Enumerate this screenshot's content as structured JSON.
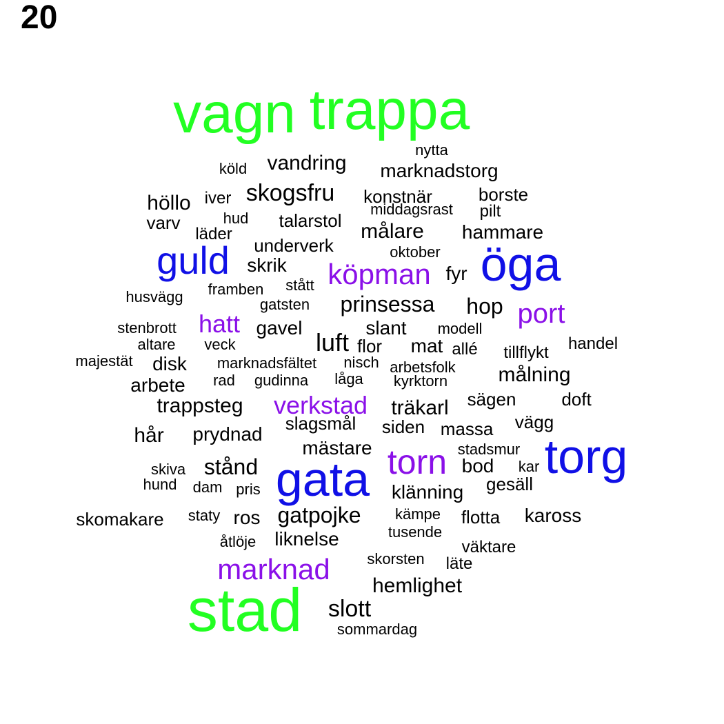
{
  "page_title": "20",
  "colors": {
    "green": "#22ff22",
    "blue": "#1010e6",
    "purple": "#8a10e8",
    "black": "#000000"
  },
  "words": [
    {
      "text": "vagn",
      "color": "green"
    },
    {
      "text": "trappa",
      "color": "green"
    },
    {
      "text": "stad",
      "color": "green"
    },
    {
      "text": "öga",
      "color": "blue"
    },
    {
      "text": "torg",
      "color": "blue"
    },
    {
      "text": "gata",
      "color": "blue"
    },
    {
      "text": "guld",
      "color": "blue"
    },
    {
      "text": "köpman",
      "color": "purple"
    },
    {
      "text": "port",
      "color": "purple"
    },
    {
      "text": "hatt",
      "color": "purple"
    },
    {
      "text": "verkstad",
      "color": "purple"
    },
    {
      "text": "torn",
      "color": "purple"
    },
    {
      "text": "marknad",
      "color": "purple"
    },
    {
      "text": "nytta",
      "color": "black"
    },
    {
      "text": "köld",
      "color": "black"
    },
    {
      "text": "vandring",
      "color": "black"
    },
    {
      "text": "marknadstorg",
      "color": "black"
    },
    {
      "text": "skogsfru",
      "color": "black"
    },
    {
      "text": "konstnär",
      "color": "black"
    },
    {
      "text": "borste",
      "color": "black"
    },
    {
      "text": "höllo",
      "color": "black"
    },
    {
      "text": "iver",
      "color": "black"
    },
    {
      "text": "middagsrast",
      "color": "black"
    },
    {
      "text": "pilt",
      "color": "black"
    },
    {
      "text": "varv",
      "color": "black"
    },
    {
      "text": "hud",
      "color": "black"
    },
    {
      "text": "talarstol",
      "color": "black"
    },
    {
      "text": "målare",
      "color": "black"
    },
    {
      "text": "hammare",
      "color": "black"
    },
    {
      "text": "läder",
      "color": "black"
    },
    {
      "text": "underverk",
      "color": "black"
    },
    {
      "text": "oktober",
      "color": "black"
    },
    {
      "text": "skrik",
      "color": "black"
    },
    {
      "text": "fyr",
      "color": "black"
    },
    {
      "text": "framben",
      "color": "black"
    },
    {
      "text": "stått",
      "color": "black"
    },
    {
      "text": "husvägg",
      "color": "black"
    },
    {
      "text": "gatsten",
      "color": "black"
    },
    {
      "text": "prinsessa",
      "color": "black"
    },
    {
      "text": "hop",
      "color": "black"
    },
    {
      "text": "stenbrott",
      "color": "black"
    },
    {
      "text": "gavel",
      "color": "black"
    },
    {
      "text": "slant",
      "color": "black"
    },
    {
      "text": "modell",
      "color": "black"
    },
    {
      "text": "altare",
      "color": "black"
    },
    {
      "text": "veck",
      "color": "black"
    },
    {
      "text": "luft",
      "color": "black"
    },
    {
      "text": "flor",
      "color": "black"
    },
    {
      "text": "mat",
      "color": "black"
    },
    {
      "text": "allé",
      "color": "black"
    },
    {
      "text": "handel",
      "color": "black"
    },
    {
      "text": "tillflykt",
      "color": "black"
    },
    {
      "text": "majestät",
      "color": "black"
    },
    {
      "text": "disk",
      "color": "black"
    },
    {
      "text": "marknadsfältet",
      "color": "black"
    },
    {
      "text": "nisch",
      "color": "black"
    },
    {
      "text": "arbetsfolk",
      "color": "black"
    },
    {
      "text": "rad",
      "color": "black"
    },
    {
      "text": "gudinna",
      "color": "black"
    },
    {
      "text": "låga",
      "color": "black"
    },
    {
      "text": "kyrktorn",
      "color": "black"
    },
    {
      "text": "målning",
      "color": "black"
    },
    {
      "text": "arbete",
      "color": "black"
    },
    {
      "text": "trappsteg",
      "color": "black"
    },
    {
      "text": "träkarl",
      "color": "black"
    },
    {
      "text": "sägen",
      "color": "black"
    },
    {
      "text": "doft",
      "color": "black"
    },
    {
      "text": "slagsmål",
      "color": "black"
    },
    {
      "text": "siden",
      "color": "black"
    },
    {
      "text": "massa",
      "color": "black"
    },
    {
      "text": "vägg",
      "color": "black"
    },
    {
      "text": "hår",
      "color": "black"
    },
    {
      "text": "prydnad",
      "color": "black"
    },
    {
      "text": "mästare",
      "color": "black"
    },
    {
      "text": "stadsmur",
      "color": "black"
    },
    {
      "text": "skiva",
      "color": "black"
    },
    {
      "text": "stånd",
      "color": "black"
    },
    {
      "text": "bod",
      "color": "black"
    },
    {
      "text": "kar",
      "color": "black"
    },
    {
      "text": "hund",
      "color": "black"
    },
    {
      "text": "dam",
      "color": "black"
    },
    {
      "text": "pris",
      "color": "black"
    },
    {
      "text": "gesäll",
      "color": "black"
    },
    {
      "text": "klänning",
      "color": "black"
    },
    {
      "text": "skomakare",
      "color": "black"
    },
    {
      "text": "staty",
      "color": "black"
    },
    {
      "text": "ros",
      "color": "black"
    },
    {
      "text": "gatpojke",
      "color": "black"
    },
    {
      "text": "kämpe",
      "color": "black"
    },
    {
      "text": "flotta",
      "color": "black"
    },
    {
      "text": "kaross",
      "color": "black"
    },
    {
      "text": "tusende",
      "color": "black"
    },
    {
      "text": "åtlöje",
      "color": "black"
    },
    {
      "text": "liknelse",
      "color": "black"
    },
    {
      "text": "väktare",
      "color": "black"
    },
    {
      "text": "skorsten",
      "color": "black"
    },
    {
      "text": "läte",
      "color": "black"
    },
    {
      "text": "hemlighet",
      "color": "black"
    },
    {
      "text": "slott",
      "color": "black"
    },
    {
      "text": "sommardag",
      "color": "black"
    }
  ]
}
